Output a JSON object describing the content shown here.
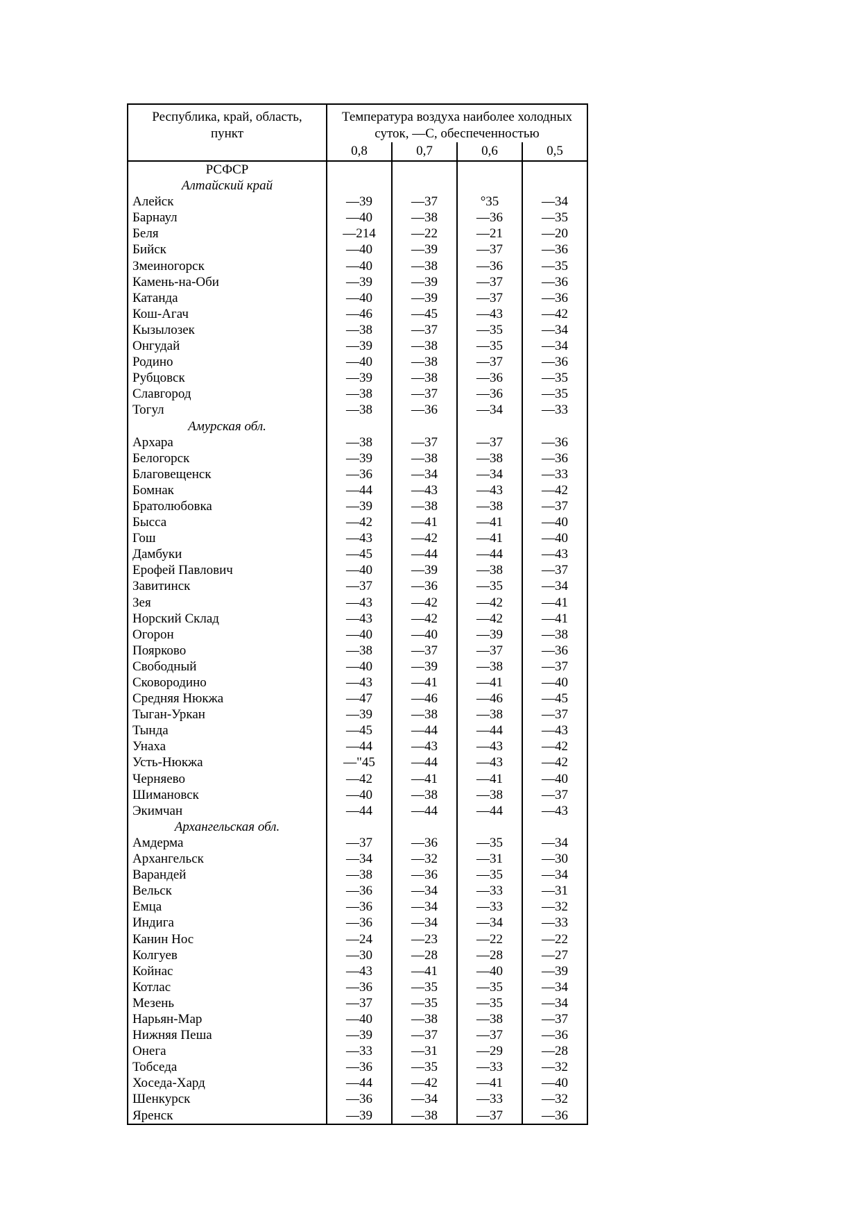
{
  "table": {
    "header": {
      "col1_line1": "Республика, край, область,",
      "col1_line2": "пункт",
      "col2_line1": "Температура воздуха наиболее холодных",
      "col2_line2": "суток, —С, обеспеченностью",
      "subcols": [
        "0,8",
        "0,7",
        "0,6",
        "0,5"
      ]
    },
    "rows": [
      {
        "type": "region",
        "label": "РСФСР"
      },
      {
        "type": "section",
        "label": "Алтайский край"
      },
      {
        "type": "city",
        "name": "Алейск",
        "values": [
          "—39",
          "—37",
          "°35",
          "—34"
        ]
      },
      {
        "type": "city",
        "name": "Барнаул",
        "values": [
          "—40",
          "—38",
          "—36",
          "—35"
        ]
      },
      {
        "type": "city",
        "name": "Беля",
        "values": [
          "—214",
          "—22",
          "—21",
          "—20"
        ]
      },
      {
        "type": "city",
        "name": "Бийск",
        "values": [
          "—40",
          "—39",
          "—37",
          "—36"
        ]
      },
      {
        "type": "city",
        "name": "Змеиногорск",
        "values": [
          "—40",
          "—38",
          "—36",
          "—35"
        ]
      },
      {
        "type": "city",
        "name": "Камень-на-Оби",
        "values": [
          "—39",
          "—39",
          "—37",
          "—36"
        ]
      },
      {
        "type": "city",
        "name": "Катанда",
        "values": [
          "—40",
          "—39",
          "—37",
          "—36"
        ]
      },
      {
        "type": "city",
        "name": "Кош-Агач",
        "values": [
          "—46",
          "—45",
          "—43",
          "—42"
        ]
      },
      {
        "type": "city",
        "name": "Кызылозек",
        "values": [
          "—38",
          "—37",
          "—35",
          "—34"
        ]
      },
      {
        "type": "city",
        "name": "Онгудай",
        "values": [
          "—39",
          "—38",
          "—35",
          "—34"
        ]
      },
      {
        "type": "city",
        "name": "Родино",
        "values": [
          "—40",
          "—38",
          "—37",
          "—36"
        ]
      },
      {
        "type": "city",
        "name": "Рубцовск",
        "values": [
          "—39",
          "—38",
          "—36",
          "—35"
        ]
      },
      {
        "type": "city",
        "name": "Славгород",
        "values": [
          "—38",
          "—37",
          "—36",
          "—35"
        ]
      },
      {
        "type": "city",
        "name": "Тогул",
        "values": [
          "—38",
          "—36",
          "—34",
          "—33"
        ]
      },
      {
        "type": "section",
        "label": "Амурская обл."
      },
      {
        "type": "city",
        "name": "Архара",
        "values": [
          "—38",
          "—37",
          "—37",
          "—36"
        ]
      },
      {
        "type": "city",
        "name": "Белогорск",
        "values": [
          "—39",
          "—38",
          "—38",
          "—36"
        ]
      },
      {
        "type": "city",
        "name": "Благовещенск",
        "values": [
          "—36",
          "—34",
          "—34",
          "—33"
        ]
      },
      {
        "type": "city",
        "name": "Бомнак",
        "values": [
          "—44",
          "—43",
          "—43",
          "—42"
        ]
      },
      {
        "type": "city",
        "name": "Братолюбовка",
        "values": [
          "—39",
          "—38",
          "—38",
          "—37"
        ]
      },
      {
        "type": "city",
        "name": "Бысса",
        "values": [
          "—42",
          "—41",
          "—41",
          "—40"
        ]
      },
      {
        "type": "city",
        "name": "Гош",
        "values": [
          "—43",
          "—42",
          "—41",
          "—40"
        ]
      },
      {
        "type": "city",
        "name": "Дамбуки",
        "values": [
          "—45",
          "—44",
          "—44",
          "—43"
        ]
      },
      {
        "type": "city",
        "name": "Ерофей Павлович",
        "values": [
          "—40",
          "—39",
          "—38",
          "—37"
        ]
      },
      {
        "type": "city",
        "name": "Завитинск",
        "values": [
          "—37",
          "—36",
          "—35",
          "—34"
        ]
      },
      {
        "type": "city",
        "name": "Зея",
        "values": [
          "—43",
          "—42",
          "—42",
          "—41"
        ]
      },
      {
        "type": "city",
        "name": "Норский Склад",
        "values": [
          "—43",
          "—42",
          "—42",
          "—41"
        ]
      },
      {
        "type": "city",
        "name": "Огорон",
        "values": [
          "—40",
          "—40",
          "—39",
          "—38"
        ]
      },
      {
        "type": "city",
        "name": "Поярково",
        "values": [
          "—38",
          "—37",
          "—37",
          "—36"
        ]
      },
      {
        "type": "city",
        "name": "Свободный",
        "values": [
          "—40",
          "—39",
          "—38",
          "—37"
        ]
      },
      {
        "type": "city",
        "name": "Сковородино",
        "values": [
          "—43",
          "—41",
          "—41",
          "—40"
        ]
      },
      {
        "type": "city",
        "name": "Средняя Нюкжа",
        "values": [
          "—47",
          "—46",
          "—46",
          "—45"
        ]
      },
      {
        "type": "city",
        "name": "Тыган-Уркан",
        "values": [
          "—39",
          "—38",
          "—38",
          "—37"
        ]
      },
      {
        "type": "city",
        "name": "Тында",
        "values": [
          "—45",
          "—44",
          "—44",
          "—43"
        ]
      },
      {
        "type": "city",
        "name": "Унаха",
        "values": [
          "—44",
          "—43",
          "—43",
          "—42"
        ]
      },
      {
        "type": "city",
        "name": "Усть-Нюкжа",
        "values": [
          "—\"45",
          "—44",
          "—43",
          "—42"
        ]
      },
      {
        "type": "city",
        "name": "Черняево",
        "values": [
          "—42",
          "—41",
          "—41",
          "—40"
        ]
      },
      {
        "type": "city",
        "name": "Шимановск",
        "values": [
          "—40",
          "—38",
          "—38",
          "—37"
        ]
      },
      {
        "type": "city",
        "name": "Экимчан",
        "values": [
          "—44",
          "—44",
          "—44",
          "—43"
        ]
      },
      {
        "type": "section",
        "label": "Архангельская обл."
      },
      {
        "type": "city",
        "name": "Амдерма",
        "values": [
          "—37",
          "—36",
          "—35",
          "—34"
        ]
      },
      {
        "type": "city",
        "name": "Архангельск",
        "values": [
          "—34",
          "—32",
          "—31",
          "—30"
        ]
      },
      {
        "type": "city",
        "name": "Варандей",
        "values": [
          "—38",
          "—36",
          "—35",
          "—34"
        ]
      },
      {
        "type": "city",
        "name": "Вельск",
        "values": [
          "—36",
          "—34",
          "—33",
          "—31"
        ]
      },
      {
        "type": "city",
        "name": "Емца",
        "values": [
          "—36",
          "—34",
          "—33",
          "—32"
        ]
      },
      {
        "type": "city",
        "name": "Индига",
        "values": [
          "—36",
          "—34",
          "—34",
          "—33"
        ]
      },
      {
        "type": "city",
        "name": "Канин Нос",
        "values": [
          "—24",
          "—23",
          "—22",
          "—22"
        ]
      },
      {
        "type": "city",
        "name": "Колгуев",
        "values": [
          "—30",
          "—28",
          "—28",
          "—27"
        ]
      },
      {
        "type": "city",
        "name": "Койнас",
        "values": [
          "—43",
          "—41",
          "—40",
          "—39"
        ]
      },
      {
        "type": "city",
        "name": "Котлас",
        "values": [
          "—36",
          "—35",
          "—35",
          "—34"
        ]
      },
      {
        "type": "city",
        "name": "Мезень",
        "values": [
          "—37",
          "—35",
          "—35",
          "—34"
        ]
      },
      {
        "type": "city",
        "name": "Нарьян-Мар",
        "values": [
          "—40",
          "—38",
          "—38",
          "—37"
        ]
      },
      {
        "type": "city",
        "name": "Нижняя Пеша",
        "values": [
          "—39",
          "—37",
          "—37",
          "—36"
        ]
      },
      {
        "type": "city",
        "name": "Онега",
        "values": [
          "—33",
          "—31",
          "—29",
          "—28"
        ]
      },
      {
        "type": "city",
        "name": "Тобседа",
        "values": [
          "—36",
          "—35",
          "—33",
          "—32"
        ]
      },
      {
        "type": "city",
        "name": "Хоседа-Хард",
        "values": [
          "—44",
          "—42",
          "—41",
          "—40"
        ]
      },
      {
        "type": "city",
        "name": "Шенкурск",
        "values": [
          "—36",
          "—34",
          "—33",
          "—32"
        ]
      },
      {
        "type": "city",
        "name": "Яренск",
        "values": [
          "—39",
          "—38",
          "—37",
          "—36"
        ]
      }
    ]
  }
}
